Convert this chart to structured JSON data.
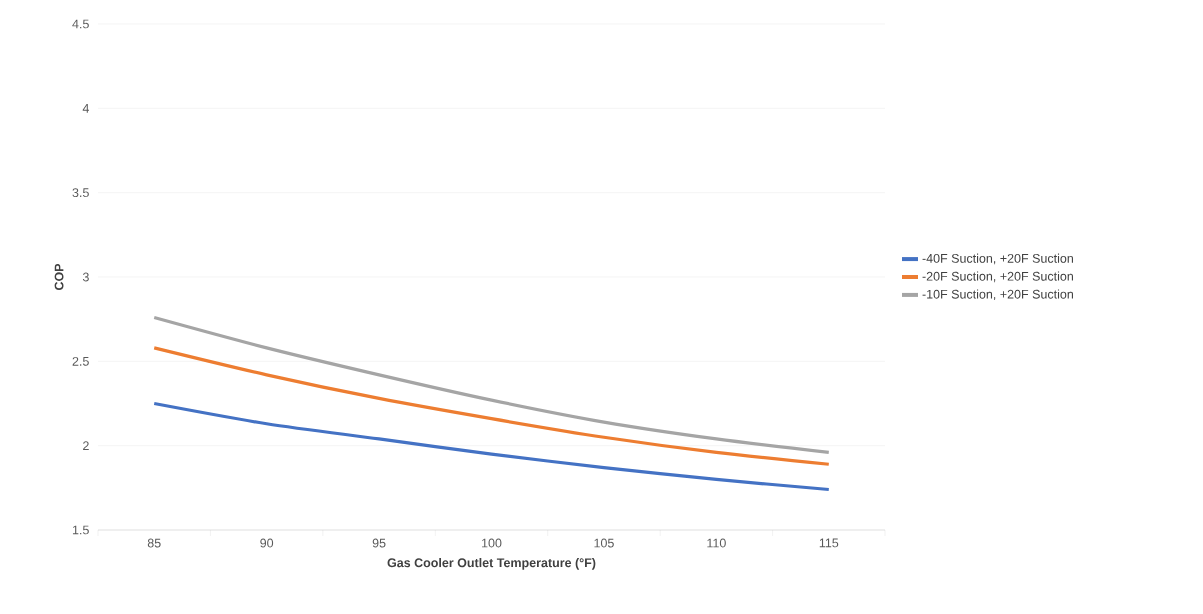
{
  "chart_data": {
    "type": "line",
    "xlabel": "Gas Cooler Outlet Temperature (°F)",
    "ylabel": "COP",
    "categories": [
      "85",
      "90",
      "95",
      "100",
      "105",
      "110",
      "115"
    ],
    "series": [
      {
        "name": "-40F Suction, +20F Suction",
        "color": "#4472c4",
        "values": [
          2.25,
          2.13,
          2.04,
          1.95,
          1.87,
          1.8,
          1.74
        ]
      },
      {
        "name": "-20F Suction, +20F Suction",
        "color": "#ed7d31",
        "values": [
          2.58,
          2.42,
          2.28,
          2.16,
          2.05,
          1.96,
          1.89
        ]
      },
      {
        "name": "-10F Suction, +20F Suction",
        "color": "#a5a5a5",
        "values": [
          2.76,
          2.58,
          2.42,
          2.27,
          2.14,
          2.04,
          1.96
        ]
      }
    ],
    "ylim": [
      1.5,
      4.5
    ],
    "yticks": [
      1.5,
      2,
      2.5,
      3,
      3.5,
      4,
      4.5
    ],
    "grid": "y",
    "legend": "right",
    "marker": "none",
    "line_style": "solid"
  }
}
